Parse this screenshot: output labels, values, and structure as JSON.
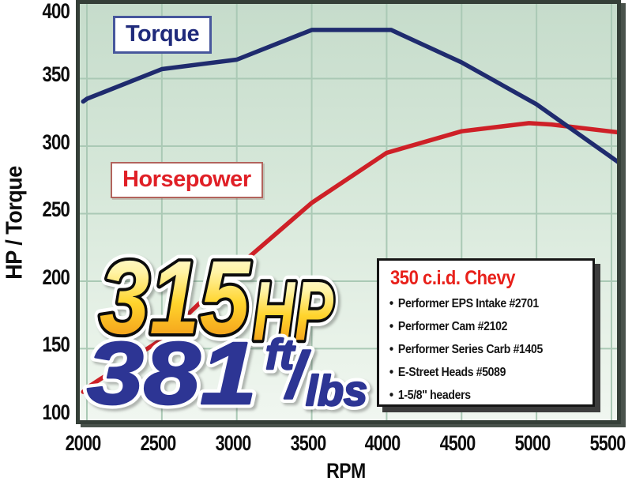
{
  "chart_data": {
    "type": "line",
    "title": "",
    "xlabel": "RPM",
    "ylabel": "HP / Torque",
    "xlim": [
      1975,
      5560
    ],
    "ylim": [
      96,
      403
    ],
    "grid": true,
    "x_ticks": [
      2000,
      2500,
      3000,
      3500,
      4000,
      4500,
      5000,
      5500
    ],
    "x_tick_labels": [
      "2000",
      "2500",
      "3000",
      "3500",
      "4000",
      "4500",
      "5000",
      "5500"
    ],
    "y_ticks": [
      400,
      350,
      300,
      250,
      200,
      150,
      100
    ],
    "y_tick_labels": [
      "400",
      "350",
      "300",
      "250",
      "200",
      "150",
      "100"
    ],
    "series": [
      {
        "id": "horsepower",
        "name": "Horsepower",
        "color": "#ce2027",
        "peak": "315 HP",
        "points": [
          [
            1975,
            118
          ],
          [
            2000,
            121
          ],
          [
            2500,
            157
          ],
          [
            3000,
            210
          ],
          [
            3500,
            258
          ],
          [
            4000,
            295
          ],
          [
            4500,
            311
          ],
          [
            4950,
            317
          ],
          [
            5100,
            316
          ],
          [
            5560,
            310
          ]
        ]
      },
      {
        "id": "torque",
        "name": "Torque",
        "color": "#1f2b6e",
        "peak": "381 ft/lbs",
        "points": [
          [
            1975,
            333
          ],
          [
            2000,
            335
          ],
          [
            2500,
            357
          ],
          [
            3000,
            364
          ],
          [
            3500,
            386
          ],
          [
            4030,
            386
          ],
          [
            4500,
            362
          ],
          [
            5000,
            331
          ],
          [
            5560,
            287
          ]
        ]
      }
    ]
  },
  "headline": {
    "hp_value": "315",
    "hp_unit": "HP",
    "torque_value": "381",
    "torque_unit_numerator": "ft",
    "torque_unit_slash": "/",
    "torque_unit_denominator": "lbs",
    "yellow_gradient": [
      "#fffdf0",
      "#fff3a6",
      "#ffd42c",
      "#f5a51d",
      "#ee8f16"
    ],
    "blue_color": "#2d3594"
  },
  "spec_box": {
    "title": "350 c.i.d. Chevy",
    "bullet": "•",
    "items": [
      "Performer EPS Intake #2701",
      "Performer Cam #2102",
      "Performer Series Carb #1405",
      "E-Street Heads #5089",
      "1-5/8\" headers"
    ]
  }
}
